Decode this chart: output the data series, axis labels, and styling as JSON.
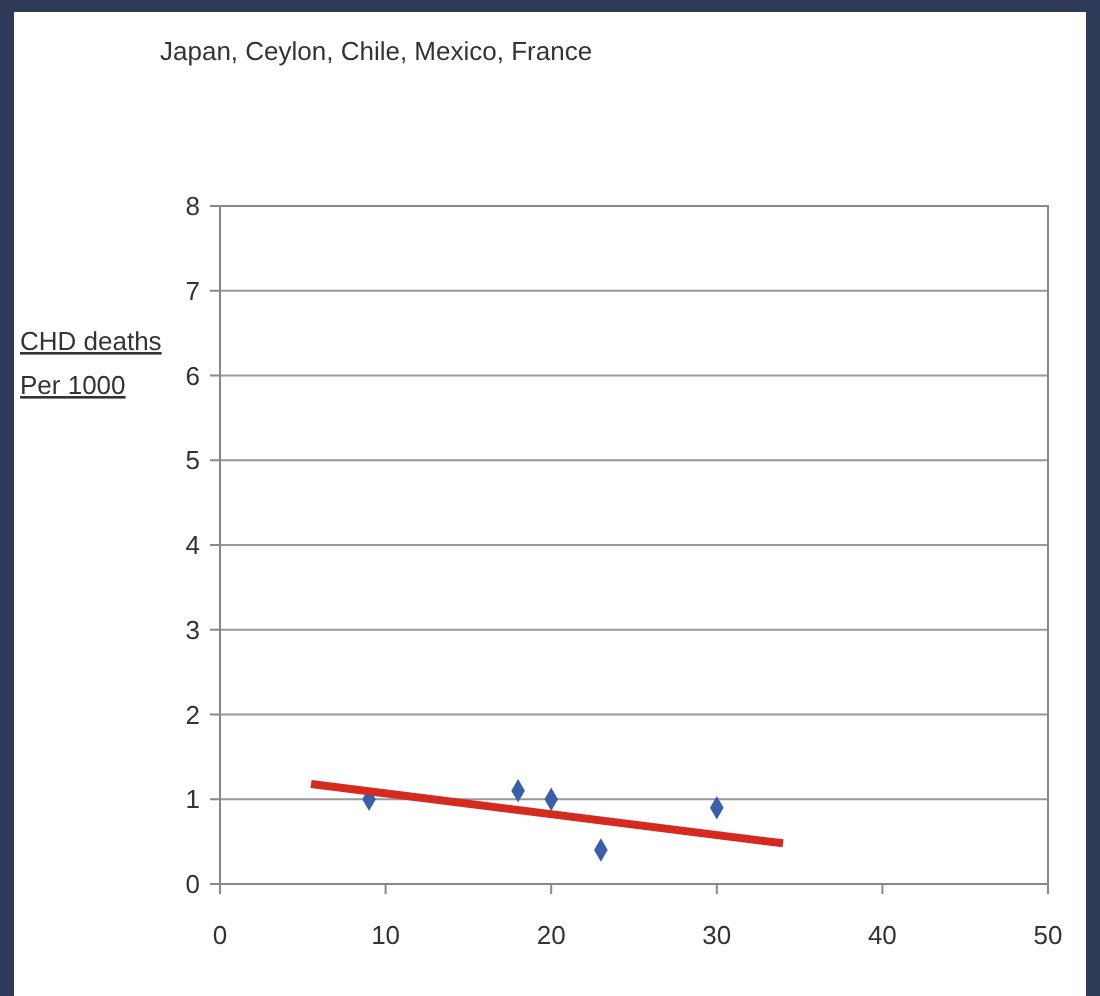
{
  "chart_data": {
    "type": "scatter",
    "title": "Japan, Ceylon, Chile, Mexico, France",
    "ylabel": "CHD deaths\nPer 1000",
    "xlim": [
      0,
      50
    ],
    "xticks": [
      0,
      10,
      20,
      30,
      40,
      50
    ],
    "ylim": [
      0,
      8
    ],
    "yticks": [
      0,
      1,
      2,
      3,
      4,
      5,
      6,
      7,
      8
    ],
    "grid": "y",
    "marker": "diamond",
    "series": [
      {
        "color": "#3a5fa8",
        "x": [
          9,
          18,
          20,
          23,
          30
        ],
        "values": [
          1.0,
          1.1,
          1.0,
          0.4,
          0.9
        ]
      },
      {
        "type": "line",
        "color": "#d42a20",
        "x": [
          5.5,
          34
        ],
        "values": [
          1.18,
          0.48
        ],
        "marker": "none",
        "line_style": "solid"
      }
    ]
  }
}
